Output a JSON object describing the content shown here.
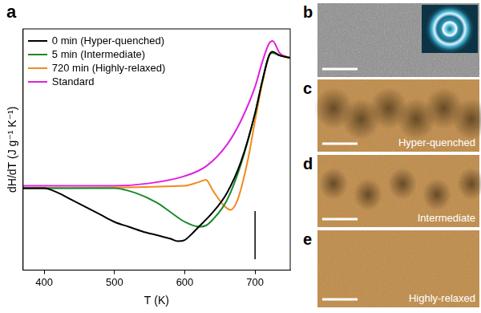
{
  "chart_data": {
    "type": "line",
    "panel": "a",
    "x_label": "T (K)",
    "y_label": "dH/dT (J g⁻¹ K⁻¹)",
    "xlim": [
      370,
      750
    ],
    "xticks": [
      400,
      500,
      600,
      700
    ],
    "ylim": [
      0,
      10
    ],
    "tick_labels": "x",
    "grid": false,
    "legend": "upper left",
    "scale_bar": {
      "x": 700,
      "y": [
        0.45,
        2.45
      ]
    },
    "series": [
      {
        "name": "0 min (Hyper-quenched)",
        "color": "#000000",
        "x": [
          370,
          400,
          420,
          440,
          460,
          480,
          500,
          520,
          540,
          560,
          580,
          590,
          600,
          610,
          620,
          640,
          660,
          680,
          700,
          710,
          720,
          725,
          735,
          750
        ],
        "values": [
          3.4,
          3.4,
          3.2,
          2.9,
          2.6,
          2.3,
          2.0,
          1.8,
          1.6,
          1.45,
          1.3,
          1.2,
          1.25,
          1.5,
          1.8,
          2.4,
          3.2,
          4.5,
          6.5,
          7.8,
          8.9,
          9.05,
          8.9,
          8.8
        ]
      },
      {
        "name": "5 min (Intermediate)",
        "color": "#1a8a2a",
        "x": [
          370,
          500,
          530,
          560,
          580,
          600,
          620,
          630,
          640,
          660,
          680,
          700,
          710,
          720,
          725,
          735,
          750
        ],
        "values": [
          3.4,
          3.4,
          3.2,
          2.8,
          2.4,
          2.0,
          1.8,
          1.85,
          2.1,
          2.9,
          4.4,
          6.5,
          7.8,
          8.9,
          9.0,
          8.9,
          8.8
        ]
      },
      {
        "name": "720 min (Highly-relaxed)",
        "color": "#f28a1e",
        "x": [
          370,
          600,
          620,
          630,
          640,
          655,
          665,
          675,
          690,
          700,
          710,
          720,
          725,
          735,
          750
        ],
        "values": [
          3.4,
          3.5,
          3.65,
          3.75,
          3.3,
          2.7,
          2.5,
          2.9,
          4.6,
          6.2,
          7.7,
          8.9,
          9.05,
          8.9,
          8.8
        ]
      },
      {
        "name": "Standard",
        "color": "#e020e0",
        "x": [
          370,
          500,
          550,
          600,
          630,
          660,
          680,
          700,
          710,
          720,
          725,
          735,
          750
        ],
        "values": [
          3.5,
          3.5,
          3.6,
          3.9,
          4.3,
          5.2,
          6.2,
          7.6,
          8.6,
          9.4,
          9.5,
          9.0,
          8.8
        ]
      }
    ]
  },
  "images": [
    {
      "panel": "b"
    },
    {
      "panel": "c",
      "caption": "Hyper-quenched"
    },
    {
      "panel": "d",
      "caption": "Intermediate"
    },
    {
      "panel": "e",
      "caption": "Highly-relaxed"
    }
  ]
}
